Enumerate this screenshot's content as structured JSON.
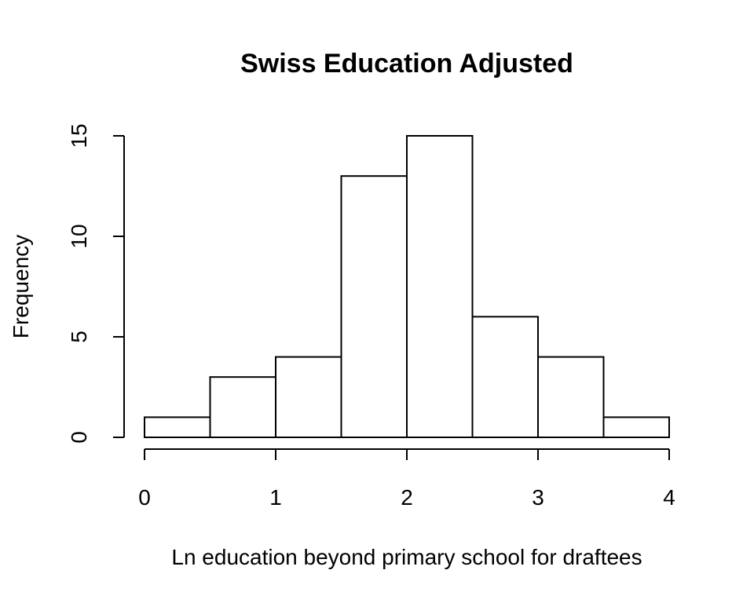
{
  "chart_data": {
    "type": "bar",
    "title": "Swiss Education Adjusted",
    "xlabel": "Ln education beyond primary school for draftees",
    "ylabel": "Frequency",
    "bins": [
      {
        "start": 0.0,
        "end": 0.5,
        "count": 1
      },
      {
        "start": 0.5,
        "end": 1.0,
        "count": 3
      },
      {
        "start": 1.0,
        "end": 1.5,
        "count": 4
      },
      {
        "start": 1.5,
        "end": 2.0,
        "count": 13
      },
      {
        "start": 2.0,
        "end": 2.5,
        "count": 15
      },
      {
        "start": 2.5,
        "end": 3.0,
        "count": 6
      },
      {
        "start": 3.0,
        "end": 3.5,
        "count": 4
      },
      {
        "start": 3.5,
        "end": 4.0,
        "count": 1
      }
    ],
    "xlim": [
      0,
      4
    ],
    "ylim": [
      0,
      15
    ],
    "xticks": [
      {
        "value": 0,
        "label": "0"
      },
      {
        "value": 1,
        "label": "1"
      },
      {
        "value": 2,
        "label": "2"
      },
      {
        "value": 3,
        "label": "3"
      },
      {
        "value": 4,
        "label": "4"
      }
    ],
    "yticks": [
      {
        "value": 0,
        "label": "0"
      },
      {
        "value": 5,
        "label": "5"
      },
      {
        "value": 10,
        "label": "10"
      },
      {
        "value": 15,
        "label": "15"
      }
    ],
    "grid": false,
    "legend": "none"
  }
}
